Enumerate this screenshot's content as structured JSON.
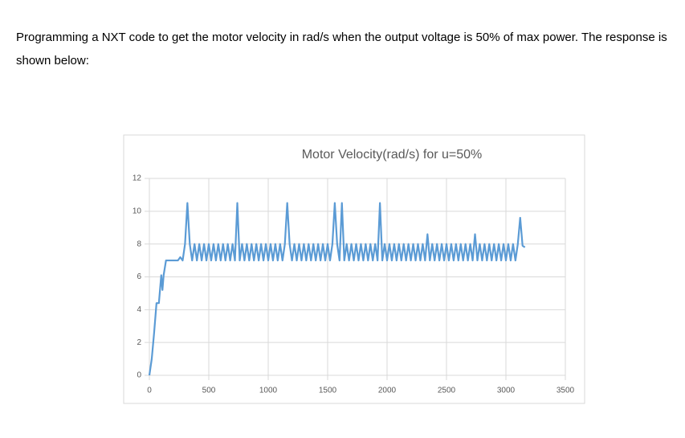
{
  "text": "Programming a NXT code to get the motor velocity in rad/s when the output voltage is 50% of max power. The response is shown below:",
  "chart_data": {
    "type": "line",
    "title": "Motor Velocity(rad/s) for u=50%",
    "x": [
      0,
      20,
      40,
      60,
      80,
      100,
      110,
      120,
      140,
      160,
      180,
      200,
      220,
      240,
      260,
      280,
      300,
      320,
      340,
      360,
      380,
      400,
      420,
      440,
      460,
      480,
      500,
      520,
      540,
      560,
      580,
      600,
      620,
      640,
      660,
      680,
      700,
      720,
      740,
      760,
      780,
      800,
      820,
      840,
      860,
      880,
      900,
      920,
      940,
      960,
      980,
      1000,
      1020,
      1040,
      1060,
      1080,
      1100,
      1120,
      1140,
      1160,
      1180,
      1200,
      1220,
      1240,
      1260,
      1280,
      1300,
      1320,
      1340,
      1360,
      1380,
      1400,
      1420,
      1440,
      1460,
      1480,
      1500,
      1520,
      1540,
      1560,
      1580,
      1600,
      1620,
      1640,
      1660,
      1680,
      1700,
      1720,
      1740,
      1760,
      1780,
      1800,
      1820,
      1840,
      1860,
      1880,
      1900,
      1920,
      1940,
      1960,
      1980,
      2000,
      2020,
      2040,
      2060,
      2080,
      2100,
      2120,
      2140,
      2160,
      2180,
      2200,
      2220,
      2240,
      2260,
      2280,
      2300,
      2320,
      2340,
      2360,
      2380,
      2400,
      2420,
      2440,
      2460,
      2480,
      2500,
      2520,
      2540,
      2560,
      2580,
      2600,
      2620,
      2640,
      2660,
      2680,
      2700,
      2720,
      2740,
      2760,
      2780,
      2800,
      2820,
      2840,
      2860,
      2880,
      2900,
      2920,
      2940,
      2960,
      2980,
      3000,
      3020,
      3040,
      3060,
      3080,
      3100,
      3120,
      3140,
      3160
    ],
    "series": [
      {
        "color": "#5b9bd5",
        "values": [
          0,
          1,
          2.6,
          4.4,
          4.4,
          6.1,
          5.2,
          6.1,
          7,
          7,
          7,
          7,
          7,
          7,
          7.2,
          7,
          8,
          10.5,
          8,
          7,
          8,
          7,
          8,
          7,
          8,
          7,
          8,
          7,
          8,
          7,
          8,
          7,
          8,
          7,
          8,
          7,
          8,
          7,
          10.5,
          7,
          8,
          7,
          8,
          7,
          8,
          7,
          8,
          7,
          8,
          7,
          8,
          7,
          8,
          7,
          8,
          7,
          8,
          7,
          8,
          10.5,
          8,
          7,
          8,
          7,
          8,
          7,
          8,
          7,
          8,
          7,
          8,
          7,
          8,
          7,
          8,
          7,
          8,
          7,
          8,
          10.5,
          8,
          7,
          10.5,
          7,
          8,
          7,
          8,
          7,
          8,
          7,
          8,
          7,
          8,
          7,
          8,
          7,
          8,
          7,
          10.5,
          7,
          8,
          7,
          8,
          7,
          8,
          7,
          8,
          7,
          8,
          7,
          8,
          7,
          8,
          7,
          8,
          7,
          8,
          7,
          8.6,
          7,
          8,
          7,
          8,
          7,
          8,
          7,
          8,
          7,
          8,
          7,
          8,
          7,
          8,
          7,
          8,
          7,
          8,
          7,
          8.6,
          7,
          8,
          7,
          8,
          7,
          8,
          7,
          8,
          7,
          8,
          7,
          8,
          7,
          8,
          7,
          8,
          7,
          8,
          9.6,
          7.9,
          7.8
        ]
      }
    ],
    "xlim": [
      0,
      3500
    ],
    "xticks": [
      0,
      500,
      1000,
      1500,
      2000,
      2500,
      3000,
      3500
    ],
    "ylim": [
      0,
      12
    ],
    "yticks": [
      0,
      2,
      4,
      6,
      8,
      10,
      12
    ],
    "grid": true
  }
}
